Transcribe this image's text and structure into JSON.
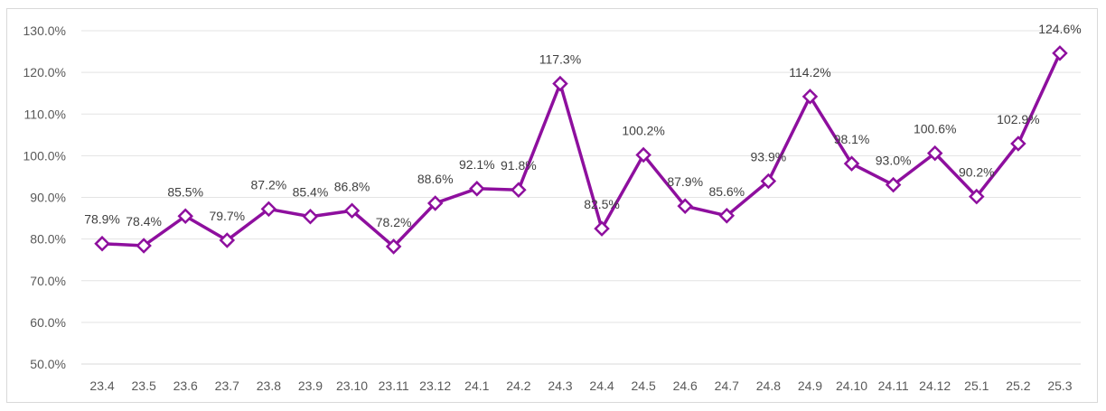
{
  "chart_data": {
    "type": "line",
    "title": "",
    "xlabel": "",
    "ylabel": "",
    "categories": [
      "23.4",
      "23.5",
      "23.6",
      "23.7",
      "23.8",
      "23.9",
      "23.10",
      "23.11",
      "23.12",
      "24.1",
      "24.2",
      "24.3",
      "24.4",
      "24.5",
      "24.6",
      "24.7",
      "24.8",
      "24.9",
      "24.10",
      "24.11",
      "24.12",
      "25.1",
      "25.2",
      "25.3"
    ],
    "series": [
      {
        "name": "",
        "values": [
          78.9,
          78.4,
          85.5,
          79.7,
          87.2,
          85.4,
          86.8,
          78.2,
          88.6,
          92.1,
          91.8,
          117.3,
          82.5,
          100.2,
          87.9,
          85.6,
          93.9,
          114.2,
          98.1,
          93.0,
          100.6,
          90.2,
          102.9,
          124.6
        ],
        "color": "#8e0f9e"
      }
    ],
    "data_labels": [
      "78.9%",
      "78.4%",
      "85.5%",
      "79.7%",
      "87.2%",
      "85.4%",
      "86.8%",
      "78.2%",
      "88.6%",
      "92.1%",
      "91.8%",
      "117.3%",
      "82.5%",
      "100.2%",
      "87.9%",
      "85.6%",
      "93.9%",
      "114.2%",
      "98.1%",
      "93.0%",
      "100.6%",
      "90.2%",
      "102.9%",
      "124.6%"
    ],
    "y_ticks": [
      "50.0%",
      "60.0%",
      "70.0%",
      "80.0%",
      "90.0%",
      "100.0%",
      "110.0%",
      "120.0%",
      "130.0%"
    ],
    "ylim": [
      50,
      130
    ],
    "y_step": 10,
    "grid": true,
    "legend": "none",
    "marker": "diamond"
  }
}
